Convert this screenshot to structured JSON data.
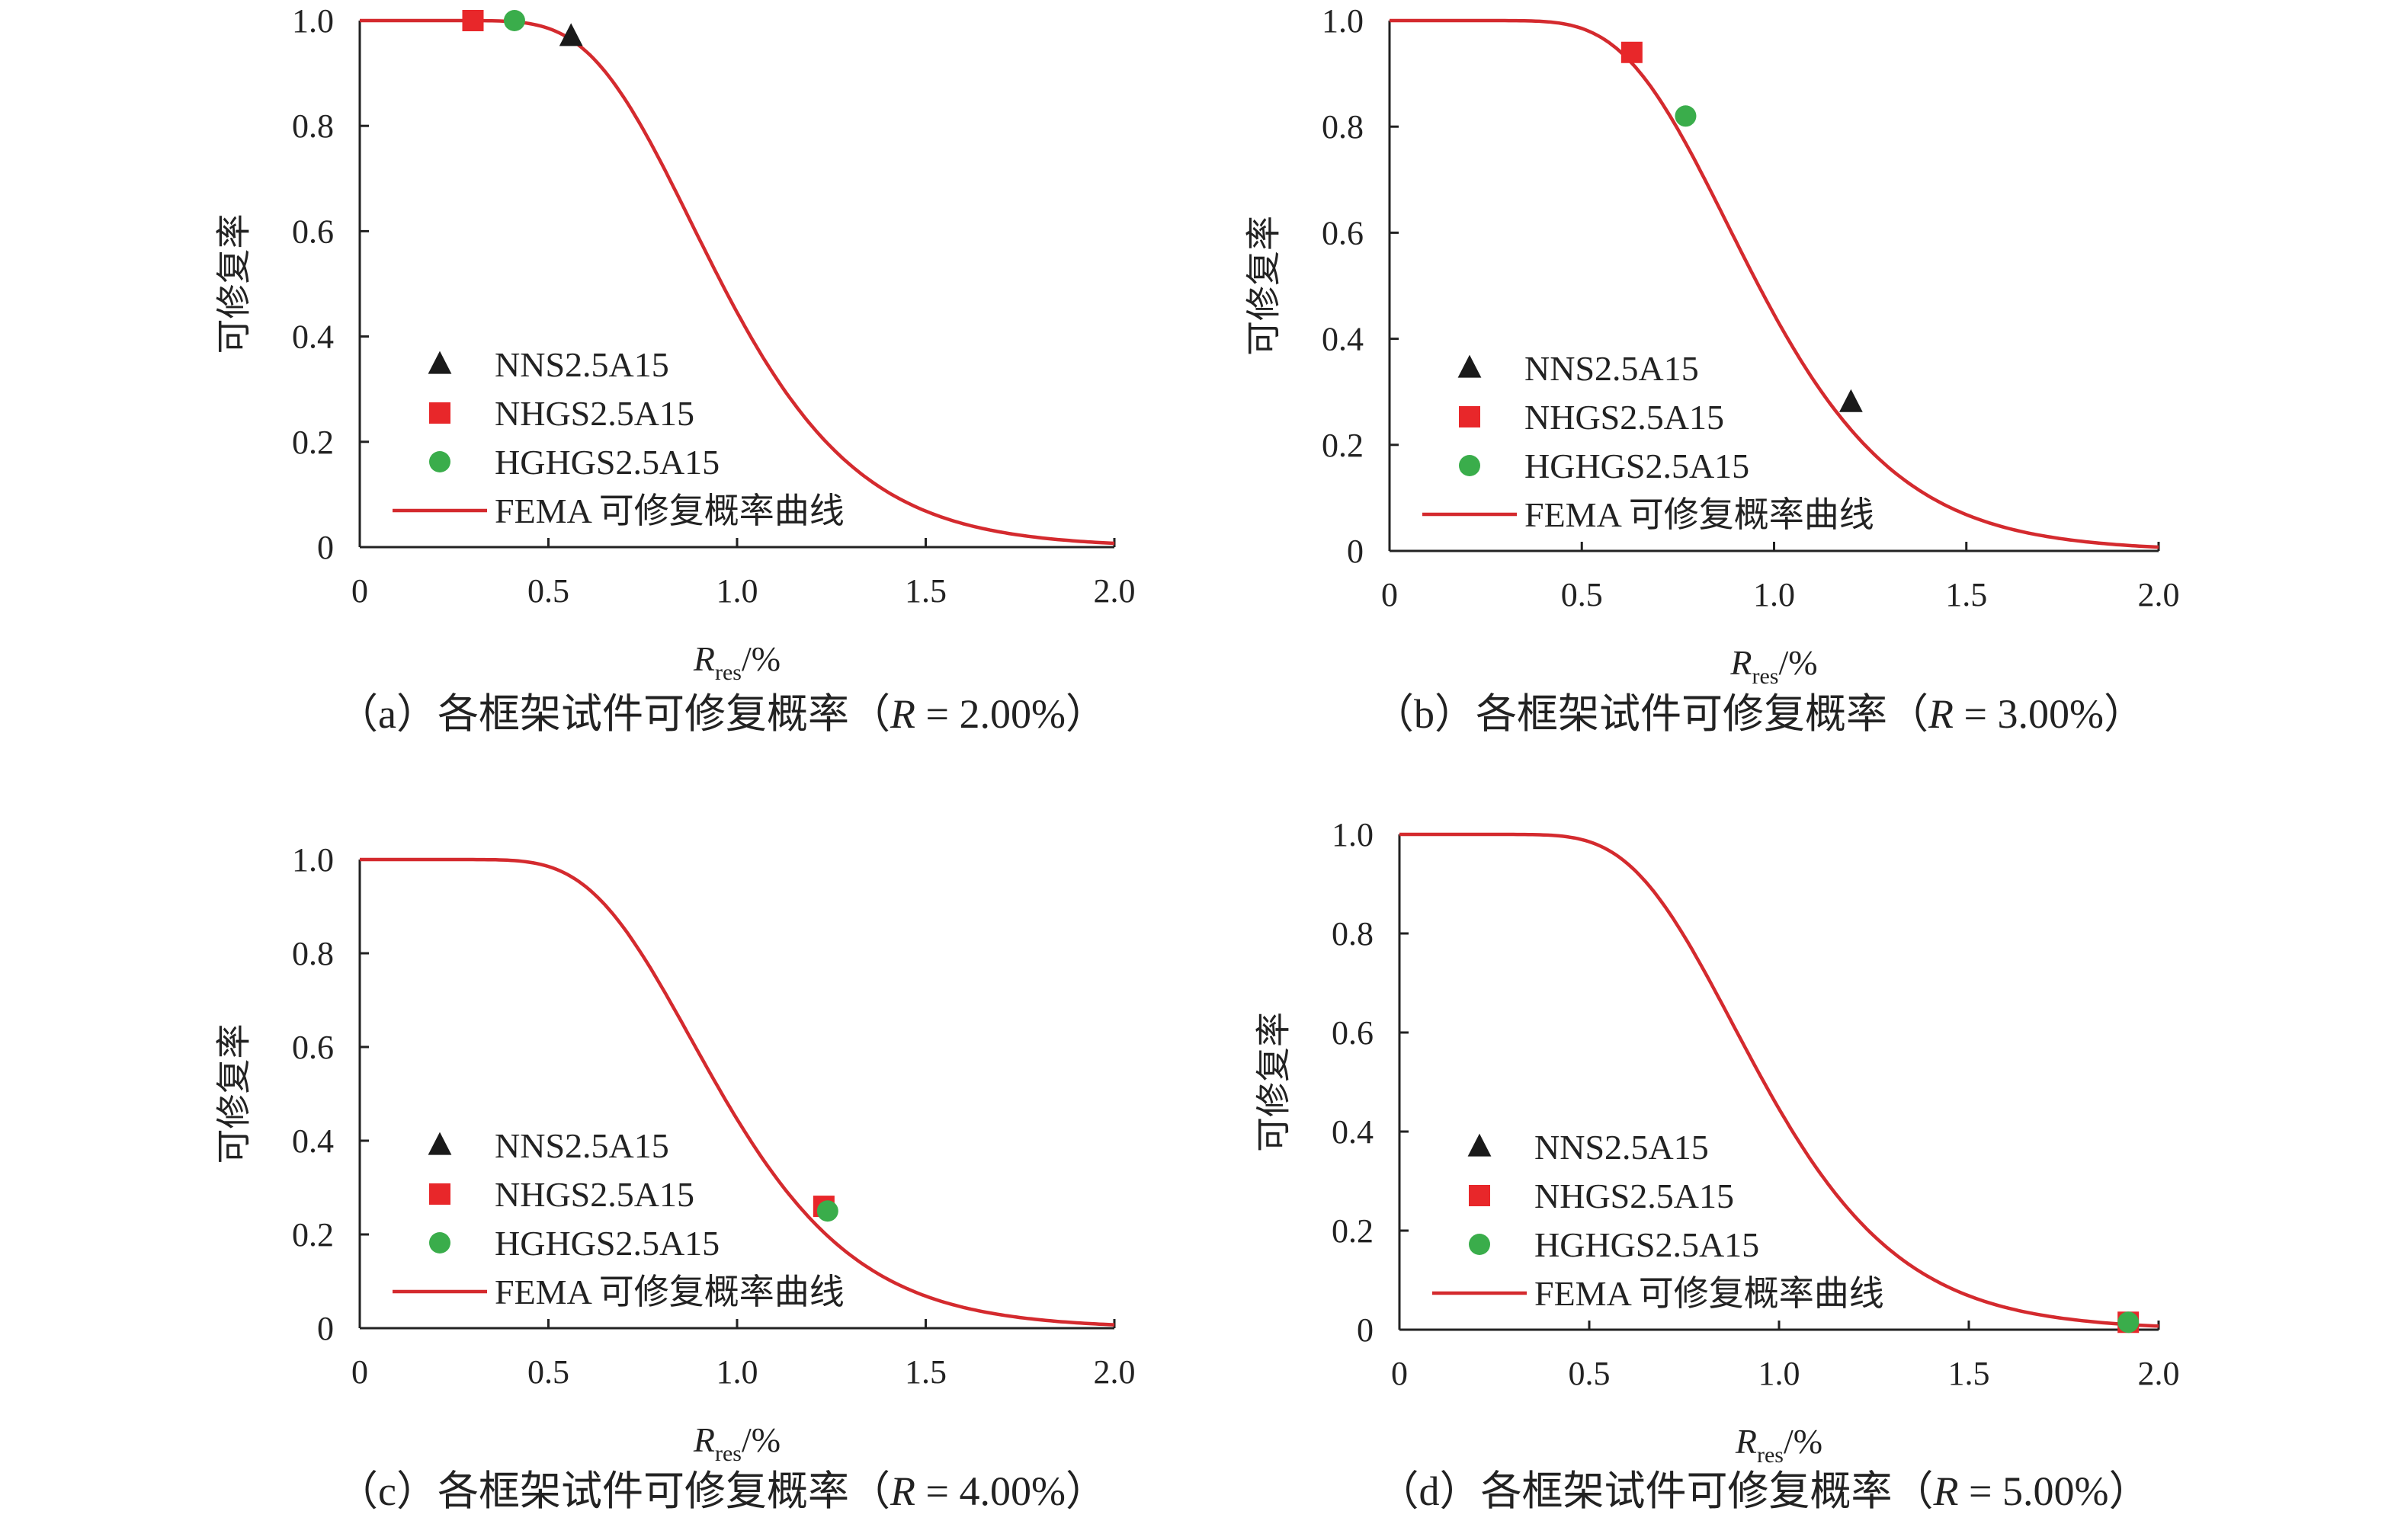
{
  "shared": {
    "ylabel": "可修复率",
    "xlabel_main": "R",
    "xlabel_sub": "res",
    "xlabel_unit": "/%",
    "legend": [
      "NNS2.5A15",
      "NHGS2.5A15",
      "HGHGS2.5A15",
      "FEMA 可修复概率曲线"
    ],
    "colors": {
      "triangle": "#1a1a1a",
      "square": "#e8272a",
      "circle": "#3aad4b",
      "curve": "#d42a2e"
    }
  },
  "chart_data": [
    {
      "type": "line",
      "caption_pre": "（a）各框架试件可修复概率（",
      "caption_r": "R",
      "caption_post": " = 2.00%）",
      "xlim": [
        0,
        2.0
      ],
      "ylim": [
        0,
        1.0
      ],
      "xticks": [
        "0",
        "0.5",
        "1.0",
        "1.5",
        "2.0"
      ],
      "yticks": [
        "0",
        "0.2",
        "0.4",
        "0.6",
        "0.8",
        "1.0"
      ],
      "series": [
        {
          "name": "NNS2.5A15",
          "marker": "triangle",
          "x": [
            0.56
          ],
          "y": [
            0.97
          ]
        },
        {
          "name": "NHGS2.5A15",
          "marker": "square",
          "x": [
            0.3
          ],
          "y": [
            1.0
          ]
        },
        {
          "name": "HGHGS2.5A15",
          "marker": "circle",
          "x": [
            0.41
          ],
          "y": [
            1.0
          ]
        },
        {
          "name": "FEMA 可修复概率曲线",
          "marker": "line",
          "median": 0.96,
          "dispersion": 0.3
        }
      ]
    },
    {
      "type": "line",
      "caption_pre": "（b）各框架试件可修复概率（",
      "caption_r": "R",
      "caption_post": " = 3.00%）",
      "xlim": [
        0,
        2.0
      ],
      "ylim": [
        0,
        1.0
      ],
      "xticks": [
        "0",
        "0.5",
        "1.0",
        "1.5",
        "2.0"
      ],
      "yticks": [
        "0",
        "0.2",
        "0.4",
        "0.6",
        "0.8",
        "1.0"
      ],
      "series": [
        {
          "name": "NNS2.5A15",
          "marker": "triangle",
          "x": [
            1.2
          ],
          "y": [
            0.28
          ]
        },
        {
          "name": "NHGS2.5A15",
          "marker": "square",
          "x": [
            0.63
          ],
          "y": [
            0.94
          ]
        },
        {
          "name": "HGHGS2.5A15",
          "marker": "circle",
          "x": [
            0.77
          ],
          "y": [
            0.82
          ]
        },
        {
          "name": "FEMA 可修复概率曲线",
          "marker": "line",
          "median": 0.96,
          "dispersion": 0.3
        }
      ]
    },
    {
      "type": "line",
      "caption_pre": "（c）各框架试件可修复概率（",
      "caption_r": "R",
      "caption_post": " = 4.00%）",
      "xlim": [
        0,
        2.0
      ],
      "ylim": [
        0,
        1.0
      ],
      "xticks": [
        "0",
        "0.5",
        "1.0",
        "1.5",
        "2.0"
      ],
      "yticks": [
        "0",
        "0.2",
        "0.4",
        "0.6",
        "0.8",
        "1.0"
      ],
      "series": [
        {
          "name": "NNS2.5A15",
          "marker": "triangle",
          "x": [],
          "y": []
        },
        {
          "name": "NHGS2.5A15",
          "marker": "square",
          "x": [
            1.23
          ],
          "y": [
            0.26
          ]
        },
        {
          "name": "HGHGS2.5A15",
          "marker": "circle",
          "x": [
            1.24
          ],
          "y": [
            0.25
          ]
        },
        {
          "name": "FEMA 可修复概率曲线",
          "marker": "line",
          "median": 0.96,
          "dispersion": 0.3
        }
      ]
    },
    {
      "type": "line",
      "caption_pre": "（d）各框架试件可修复概率（",
      "caption_r": "R",
      "caption_post": " = 5.00%）",
      "xlim": [
        0,
        2.0
      ],
      "ylim": [
        0,
        1.0
      ],
      "xticks": [
        "0",
        "0.5",
        "1.0",
        "1.5",
        "2.0"
      ],
      "yticks": [
        "0",
        "0.2",
        "0.4",
        "0.6",
        "0.8",
        "1.0"
      ],
      "series": [
        {
          "name": "NNS2.5A15",
          "marker": "triangle",
          "x": [],
          "y": []
        },
        {
          "name": "NHGS2.5A15",
          "marker": "square",
          "x": [
            1.92
          ],
          "y": [
            0.015
          ]
        },
        {
          "name": "HGHGS2.5A15",
          "marker": "circle",
          "x": [
            1.92
          ],
          "y": [
            0.015
          ]
        },
        {
          "name": "FEMA 可修复概率曲线",
          "marker": "line",
          "median": 0.96,
          "dispersion": 0.3
        }
      ]
    }
  ]
}
